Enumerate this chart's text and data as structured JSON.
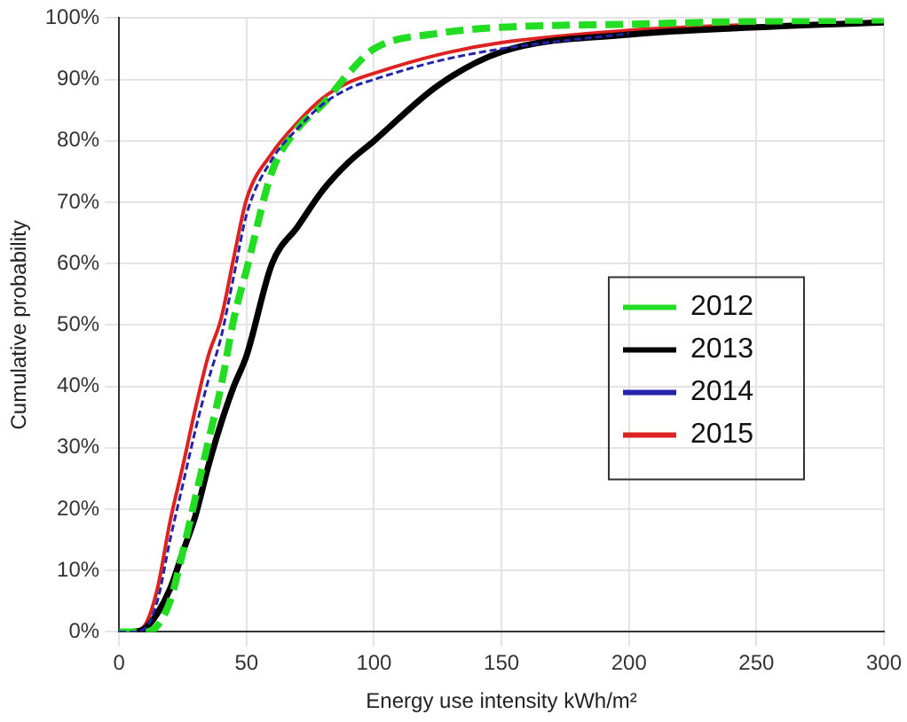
{
  "chart_data": {
    "type": "line",
    "xlabel": "Energy use intensity kWh/m²",
    "ylabel": "Cumulative probability",
    "x": [
      0,
      5,
      10,
      15,
      20,
      25,
      30,
      35,
      40,
      45,
      50,
      60,
      70,
      80,
      90,
      100,
      125,
      150,
      200,
      250,
      300
    ],
    "xlim": [
      0,
      300
    ],
    "xticks": [
      0,
      50,
      100,
      150,
      200,
      250,
      300
    ],
    "ylim": [
      0,
      100
    ],
    "yticks": [
      {
        "value": 0,
        "label": "0%"
      },
      {
        "value": 10,
        "label": "10%"
      },
      {
        "value": 20,
        "label": "20%"
      },
      {
        "value": 30,
        "label": "30%"
      },
      {
        "value": 40,
        "label": "40%"
      },
      {
        "value": 50,
        "label": "50%"
      },
      {
        "value": 60,
        "label": "60%"
      },
      {
        "value": 70,
        "label": "70%"
      },
      {
        "value": 80,
        "label": "80%"
      },
      {
        "value": 90,
        "label": "90%"
      },
      {
        "value": 100,
        "label": "100%"
      }
    ],
    "grid": true,
    "legend": "right",
    "marker": "none",
    "series": [
      {
        "name": "2012",
        "color": "#22dd22",
        "line_style": "dashed",
        "values": [
          0,
          0,
          0,
          1,
          5,
          13,
          22,
          31,
          40,
          51,
          59,
          75,
          82,
          86,
          91,
          95,
          97.5,
          98.5,
          99,
          99.5,
          99.7
        ]
      },
      {
        "name": "2013",
        "color": "#000000",
        "line_style": "solid",
        "values": [
          0,
          0,
          0.5,
          3,
          7,
          13,
          19,
          27,
          34,
          40,
          45,
          60,
          66,
          72,
          76.5,
          80,
          89,
          94.5,
          97.3,
          98.5,
          99.3
        ]
      },
      {
        "name": "2014",
        "color": "#2222aa",
        "line_style": "dotted",
        "values": [
          0,
          0,
          0.5,
          5,
          15,
          24,
          33,
          41,
          48,
          58,
          68,
          77,
          82,
          86,
          88.5,
          90,
          93,
          95,
          97.5,
          null,
          null
        ]
      },
      {
        "name": "2015",
        "color": "#dd2222",
        "line_style": "solid",
        "values": [
          0,
          0,
          1,
          7,
          18,
          27,
          36.5,
          45,
          51,
          61,
          70.5,
          78,
          83,
          87,
          89.5,
          91,
          94,
          96,
          98,
          99,
          null
        ]
      }
    ]
  }
}
